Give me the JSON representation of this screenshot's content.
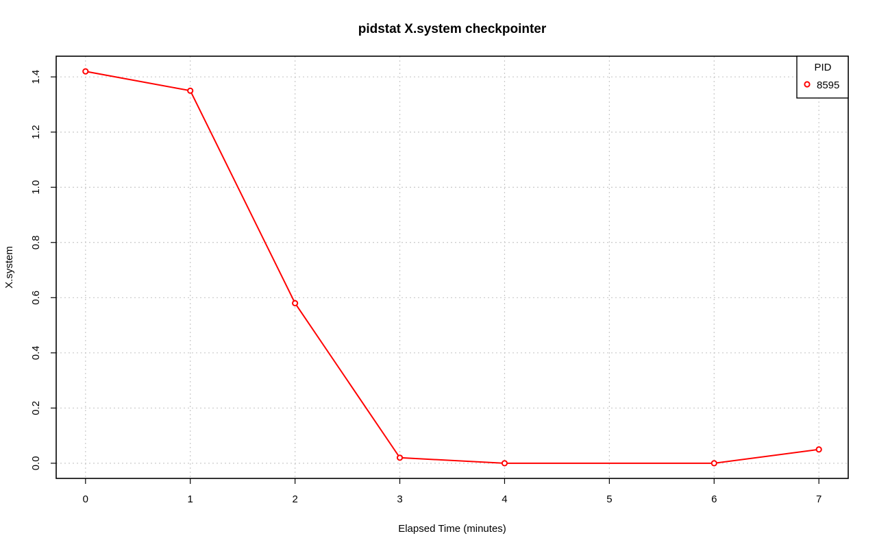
{
  "chart_data": {
    "type": "line",
    "title": "pidstat X.system checkpointer",
    "xlabel": "Elapsed Time (minutes)",
    "ylabel": "X.system",
    "xlim": [
      -0.28,
      7.28
    ],
    "ylim": [
      -0.055,
      1.475
    ],
    "x_ticks": [
      0,
      1,
      2,
      3,
      4,
      5,
      6,
      7
    ],
    "y_ticks": [
      0.0,
      0.2,
      0.4,
      0.6,
      0.8,
      1.0,
      1.2,
      1.4
    ],
    "y_tick_labels": [
      "0.0",
      "0.2",
      "0.4",
      "0.6",
      "0.8",
      "1.0",
      "1.2",
      "1.4"
    ],
    "grid": true,
    "legend": {
      "title": "PID",
      "position": "top-right"
    },
    "series": [
      {
        "name": "8595",
        "color": "#ff0000",
        "marker": "open-circle",
        "x": [
          0,
          1,
          2,
          3,
          4,
          6,
          7
        ],
        "y": [
          1.42,
          1.35,
          0.58,
          0.02,
          0.0,
          0.0,
          0.05
        ]
      }
    ]
  }
}
